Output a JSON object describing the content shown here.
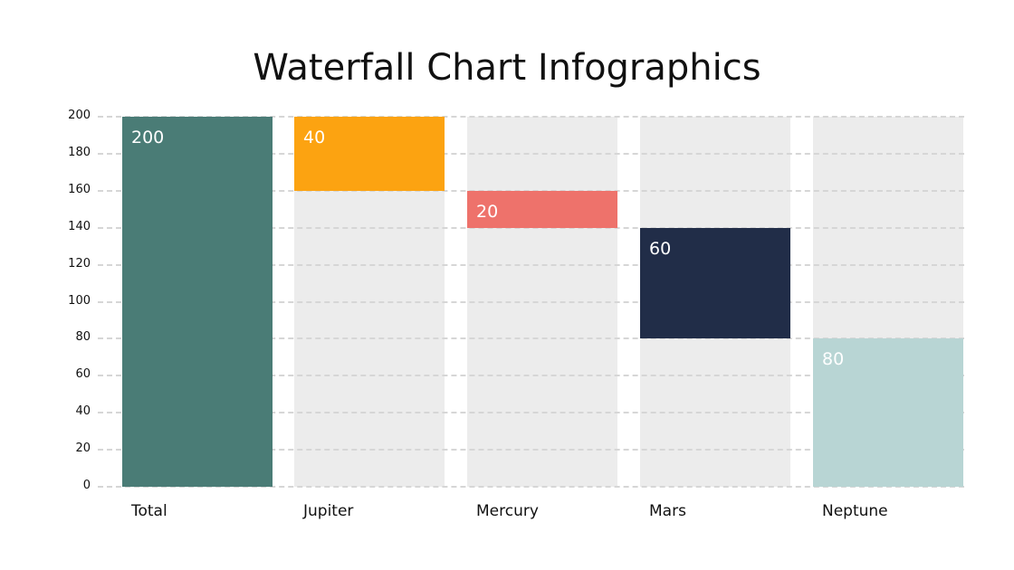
{
  "title": "Waterfall Chart Infographics",
  "chart_data": {
    "type": "bar",
    "subtype": "waterfall",
    "title": "Waterfall Chart Infographics",
    "categories": [
      "Total",
      "Jupiter",
      "Mercury",
      "Mars",
      "Neptune"
    ],
    "values": [
      200,
      40,
      20,
      60,
      80
    ],
    "bases": [
      0,
      160,
      140,
      80,
      0
    ],
    "tops": [
      200,
      200,
      160,
      140,
      80
    ],
    "colors": [
      "#4a7c76",
      "#fca311",
      "#ee726b",
      "#212d48",
      "#b8d5d4"
    ],
    "data_labels": [
      "200",
      "40",
      "20",
      "60",
      "80"
    ],
    "xlabel": "",
    "ylabel": "",
    "ylim": [
      0,
      200
    ],
    "yticks": [
      0,
      20,
      40,
      60,
      80,
      100,
      120,
      140,
      160,
      180,
      200
    ],
    "grid": true,
    "legend": "none"
  }
}
